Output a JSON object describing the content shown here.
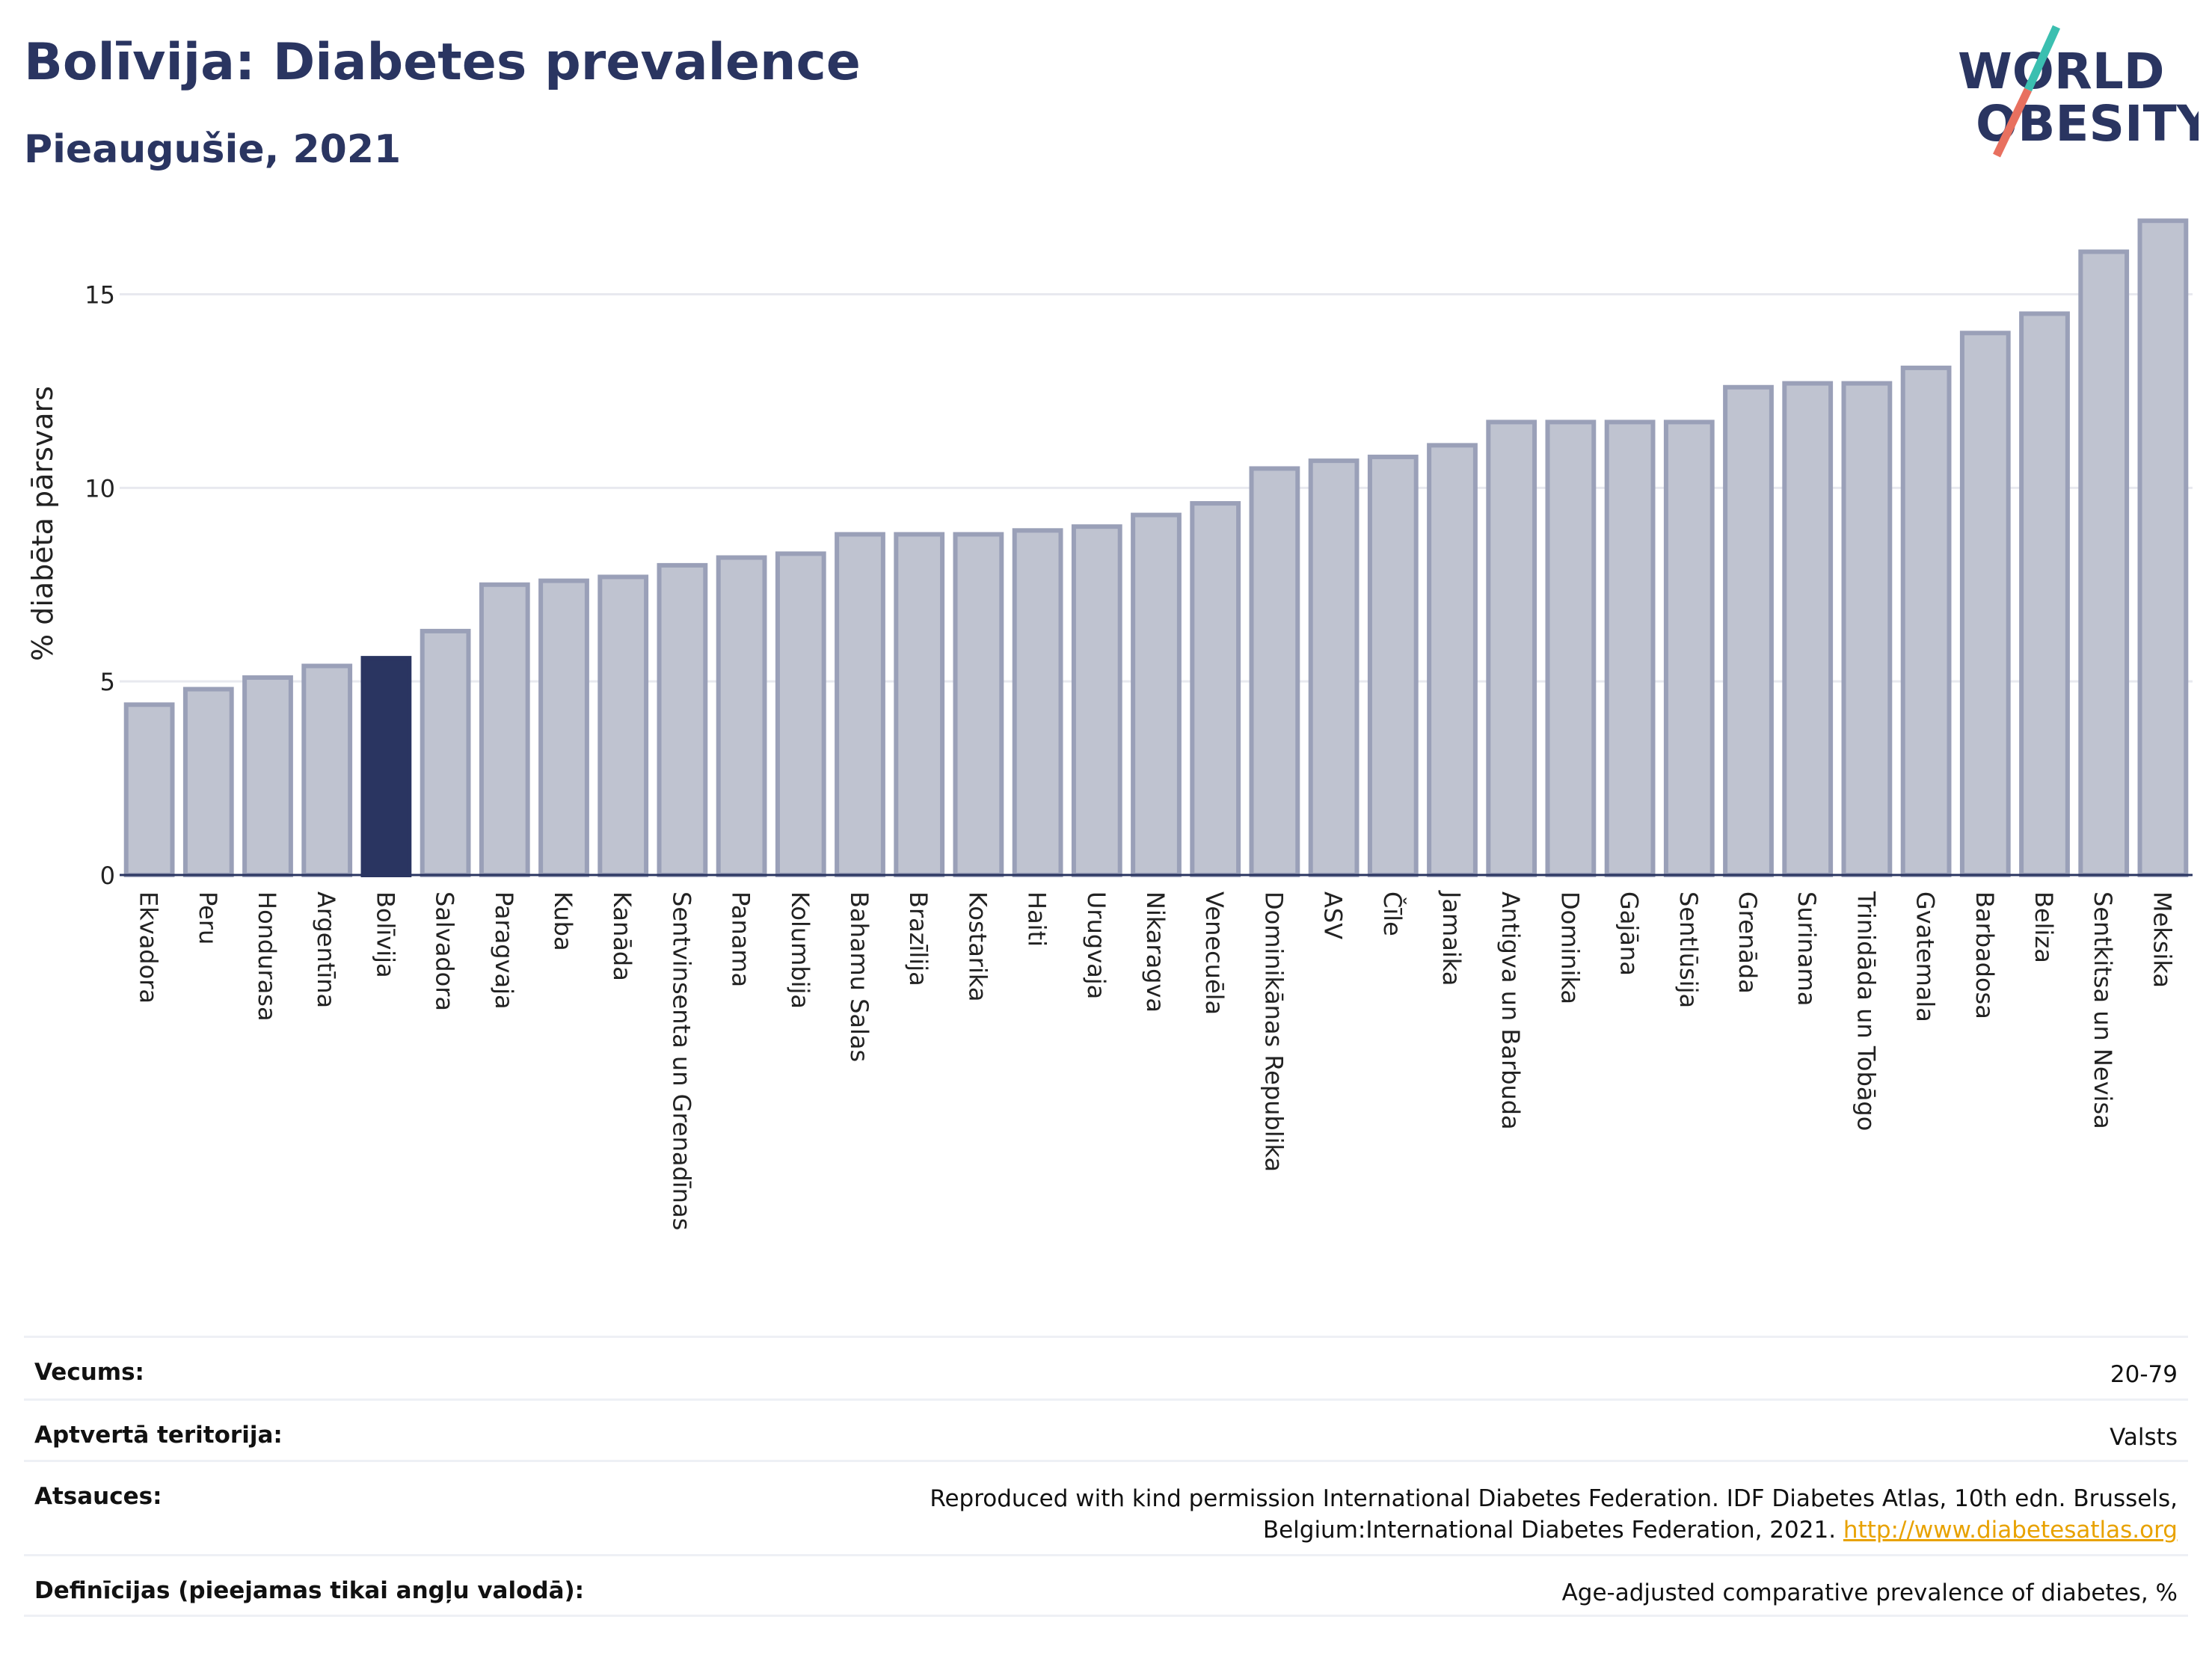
{
  "header": {
    "title": "Bolīvija: Diabetes prevalence",
    "subtitle": "Pieaugušie, 2021"
  },
  "logo": {
    "line1": "WORLD",
    "line2": "OBESITY",
    "icon": "world-obesity-logo"
  },
  "colors": {
    "highlight": "#2a3561",
    "bar_fill": "#bfc3d0",
    "bar_stroke": "#9aa0b8",
    "grid": "#e8e9ef",
    "accent_teal": "#3bbfb0",
    "accent_coral": "#e8705f"
  },
  "chart_data": {
    "type": "bar",
    "ylabel": "% diabēta pārsvars",
    "ylim": [
      0,
      17
    ],
    "yticks": [
      0,
      5,
      10,
      15
    ],
    "grid": true,
    "highlight_category": "Bolīvija",
    "categories": [
      "Ekvadora",
      "Peru",
      "Hondurasa",
      "Argentīna",
      "Bolīvija",
      "Salvadora",
      "Paragvaja",
      "Kuba",
      "Kanāda",
      "Sentvinsenta un Grenadīnas",
      "Panama",
      "Kolumbija",
      "Bahamu Salas",
      "Brazīlija",
      "Kostarika",
      "Haiti",
      "Urugvaja",
      "Nikaragva",
      "Venecuēla",
      "Dominikānas Republika",
      "ASV",
      "Čīle",
      "Jamaika",
      "Antigva un Barbuda",
      "Dominika",
      "Gajāna",
      "Sentlūsija",
      "Grenāda",
      "Surinama",
      "Trinidāda un Tobāgo",
      "Gvatemala",
      "Barbadosa",
      "Beliza",
      "Sentkitsa un Nevisa",
      "Meksika"
    ],
    "values": [
      4.4,
      4.8,
      5.1,
      5.4,
      5.6,
      6.3,
      7.5,
      7.6,
      7.7,
      8.0,
      8.2,
      8.3,
      8.8,
      8.8,
      8.8,
      8.9,
      9.0,
      9.3,
      9.6,
      10.5,
      10.7,
      10.8,
      11.1,
      11.7,
      11.7,
      11.7,
      11.7,
      12.6,
      12.7,
      12.7,
      13.1,
      14.0,
      14.5,
      16.1,
      16.9
    ]
  },
  "meta": {
    "rows": [
      {
        "label": "Vecums:",
        "value": "20-79"
      },
      {
        "label": "Aptvertā teritorija:",
        "value": "Valsts"
      },
      {
        "label": "Atsauces:",
        "value": "Reproduced with kind permission International Diabetes Federation.  IDF Diabetes Atlas, 10th edn. Brussels, Belgium:International Diabetes Federation, 2021.",
        "link": "http://www.diabetesatlas.org"
      },
      {
        "label": "Definīcijas (pieejamas tikai angļu valodā):",
        "value": "Age-adjusted comparative prevalence of diabetes, %"
      }
    ]
  }
}
